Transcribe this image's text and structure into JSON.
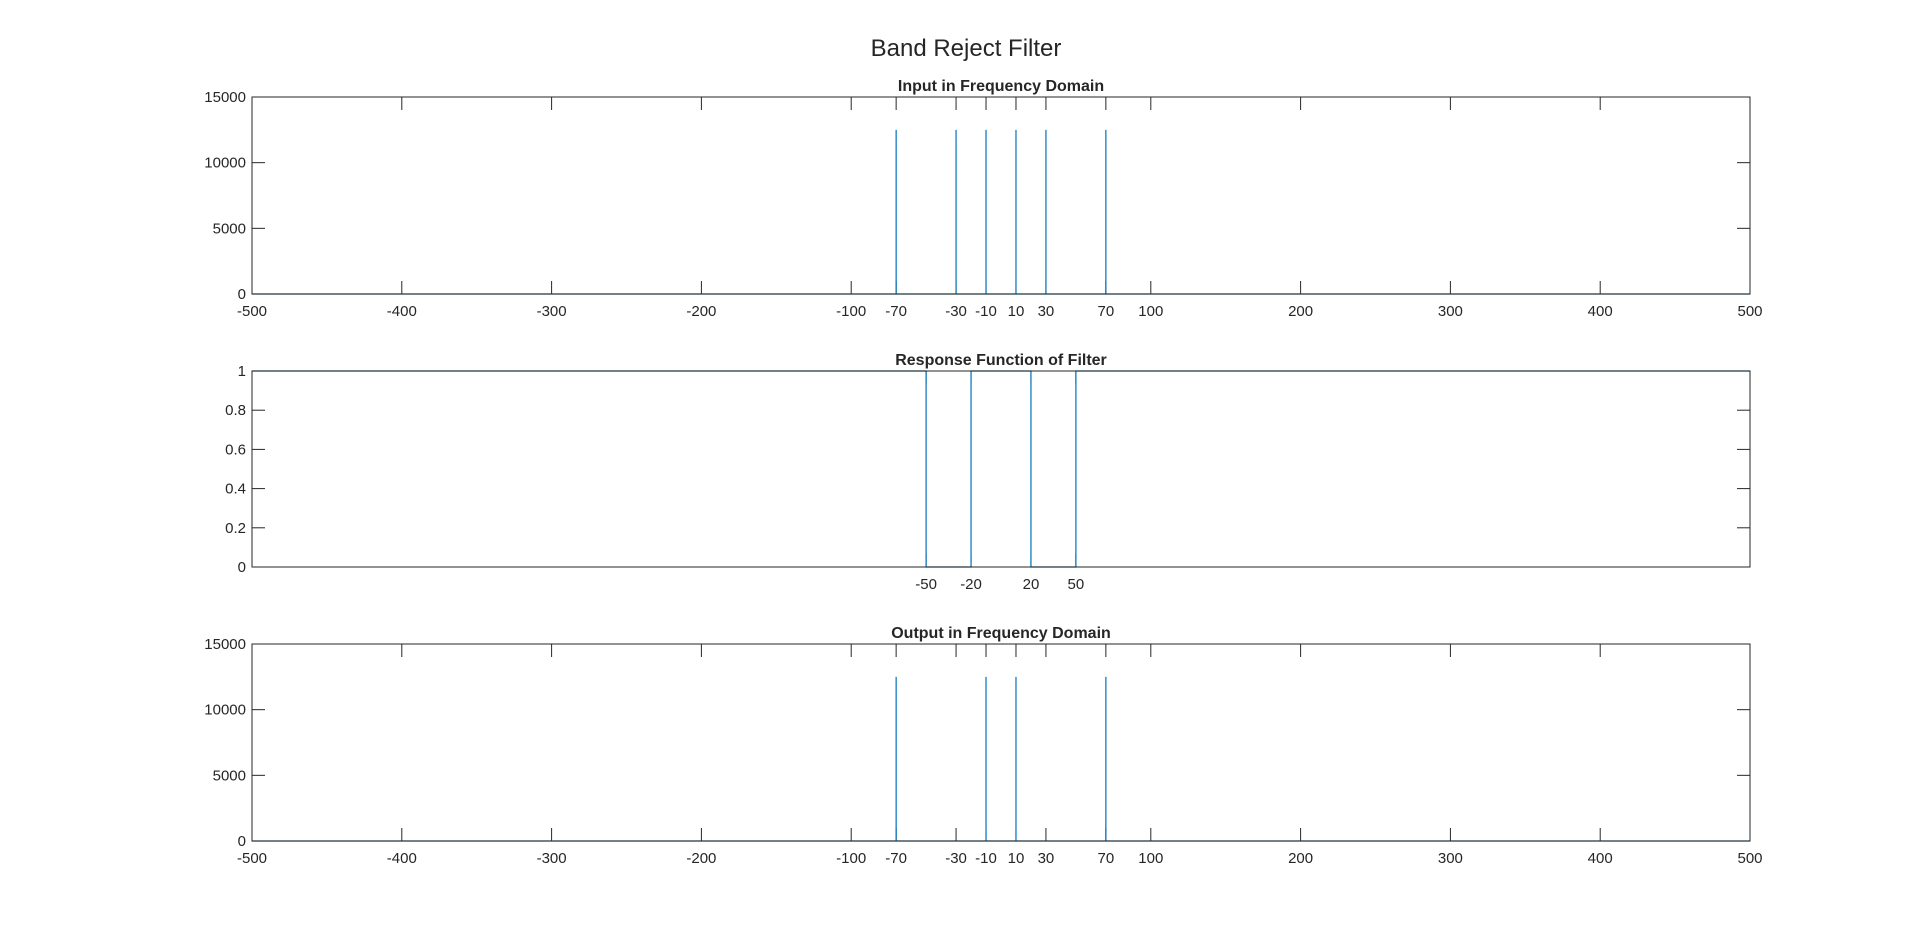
{
  "figure_title": "Band Reject Filter",
  "colors": {
    "series": "#0072BD",
    "axes": "#262626"
  },
  "chart_data": [
    {
      "type": "line",
      "title": "Input in Frequency Domain",
      "xlim": [
        -500,
        500
      ],
      "ylim": [
        0,
        15000
      ],
      "xticks": [
        -500,
        -400,
        -300,
        -200,
        -100,
        -70,
        -30,
        -10,
        10,
        30,
        70,
        100,
        200,
        300,
        400,
        500
      ],
      "yticks": [
        0,
        5000,
        10000,
        15000
      ],
      "series": [
        {
          "x": [
            -500,
            -70,
            -70,
            -70,
            -30,
            -30,
            -30,
            -10,
            -10,
            -10,
            10,
            10,
            10,
            30,
            30,
            30,
            70,
            70,
            70,
            500
          ],
          "y": [
            0,
            0,
            12500,
            0,
            0,
            12500,
            0,
            0,
            12500,
            0,
            0,
            12500,
            0,
            0,
            12500,
            0,
            0,
            12500,
            0,
            0
          ]
        }
      ]
    },
    {
      "type": "line",
      "title": "Response Function of Filter",
      "xlim": [
        -500,
        500
      ],
      "ylim": [
        0,
        1
      ],
      "xticks": [
        -50,
        -20,
        20,
        50
      ],
      "yticks": [
        0,
        0.2,
        0.4,
        0.6,
        0.8,
        1
      ],
      "series": [
        {
          "x": [
            -500,
            -50,
            -50,
            -20,
            -20,
            20,
            20,
            50,
            50,
            500
          ],
          "y": [
            1,
            1,
            0,
            0,
            1,
            1,
            0,
            0,
            1,
            1
          ]
        }
      ]
    },
    {
      "type": "line",
      "title": "Output in Frequency Domain",
      "xlim": [
        -500,
        500
      ],
      "ylim": [
        0,
        15000
      ],
      "xticks": [
        -500,
        -400,
        -300,
        -200,
        -100,
        -70,
        -30,
        -10,
        10,
        30,
        70,
        100,
        200,
        300,
        400,
        500
      ],
      "yticks": [
        0,
        5000,
        10000,
        15000
      ],
      "series": [
        {
          "x": [
            -500,
            -70,
            -70,
            -70,
            -10,
            -10,
            -10,
            10,
            10,
            10,
            70,
            70,
            70,
            500
          ],
          "y": [
            0,
            0,
            12500,
            0,
            0,
            12500,
            0,
            0,
            12500,
            0,
            0,
            12500,
            0,
            0
          ]
        }
      ]
    }
  ]
}
